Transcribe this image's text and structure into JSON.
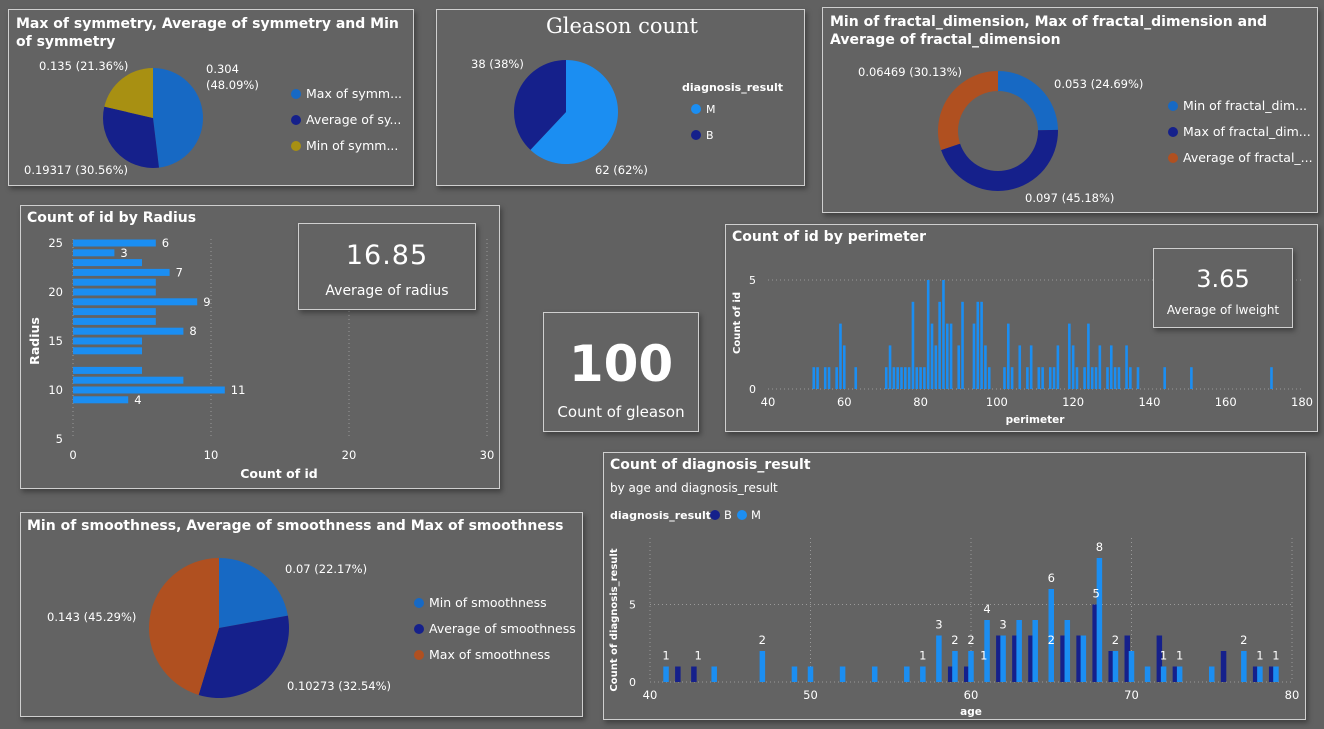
{
  "colors": {
    "blue": "#1B8EF2",
    "mid_blue": "#1769C4",
    "navy": "#15208B",
    "olive": "#A89012",
    "rust": "#B05020",
    "grid": "#9a9a9a"
  },
  "kpis": {
    "radius": {
      "value": "16.85",
      "label": "Average of radius"
    },
    "gleason": {
      "value": "100",
      "label": "Count of gleason"
    },
    "lweight": {
      "value": "3.65",
      "label": "Average of lweight"
    }
  },
  "chart_data": [
    {
      "id": "symmetry",
      "type": "pie",
      "title": "Max of symmetry, Average of symmetry and Min of symmetry",
      "slices": [
        {
          "name": "Max of symmetry",
          "legend": "Max of symm...",
          "value": 0.304,
          "label": "0.304 (48.09%)",
          "color": "#1769C4"
        },
        {
          "name": "Average of symmetry",
          "legend": "Average of sy...",
          "value": 0.19317,
          "label": "0.19317 (30.56%)",
          "color": "#15208B"
        },
        {
          "name": "Min of symmetry",
          "legend": "Min of symm...",
          "value": 0.135,
          "label": "0.135 (21.36%)",
          "color": "#A89012"
        }
      ]
    },
    {
      "id": "gleason",
      "type": "pie",
      "title": "Gleason count",
      "legend_title": "diagnosis_result",
      "slices": [
        {
          "name": "M",
          "legend": "M",
          "value": 62,
          "label": "62 (62%)",
          "color": "#1B8EF2"
        },
        {
          "name": "B",
          "legend": "B",
          "value": 38,
          "label": "38 (38%)",
          "color": "#15208B"
        }
      ]
    },
    {
      "id": "fractal",
      "type": "donut",
      "title": "Min of fractal_dimension, Max of fractal_dimension and Average of fractal_dimension",
      "slices": [
        {
          "name": "Min of fractal_dimension",
          "legend": "Min of fractal_dim...",
          "value": 0.053,
          "label": "0.053 (24.69%)",
          "color": "#1769C4"
        },
        {
          "name": "Max of fractal_dimension",
          "legend": "Max of fractal_dim...",
          "value": 0.097,
          "label": "0.097 (45.18%)",
          "color": "#15208B"
        },
        {
          "name": "Average of fractal_dimension",
          "legend": "Average of fractal_...",
          "value": 0.06469,
          "label": "0.06469 (30.13%)",
          "color": "#B05020"
        }
      ]
    },
    {
      "id": "radius",
      "type": "bar",
      "orientation": "horizontal",
      "title": "Count of id by Radius",
      "xlabel": "Count of id",
      "ylabel": "Radius",
      "xlim": [
        0,
        30
      ],
      "ylim": [
        5,
        25
      ],
      "xticks": [
        0,
        10,
        20,
        30
      ],
      "yticks": [
        5,
        10,
        15,
        20,
        25
      ],
      "categories": [
        25,
        24,
        23,
        22,
        21,
        20,
        19,
        18,
        17,
        16,
        15,
        14,
        12,
        11,
        10,
        9
      ],
      "values": [
        6,
        3,
        5,
        7,
        6,
        6,
        9,
        6,
        6,
        8,
        5,
        5,
        5,
        8,
        11,
        4
      ],
      "data_labels": {
        "25": "6",
        "24": "3",
        "22": "7",
        "19": "9",
        "16": "8",
        "10": "11",
        "9": "4"
      }
    },
    {
      "id": "perimeter",
      "type": "bar",
      "title": "Count of id by perimeter",
      "xlabel": "perimeter",
      "ylabel": "Count of id",
      "xlim": [
        40,
        180
      ],
      "ylim": [
        0,
        5
      ],
      "xticks": [
        40,
        60,
        80,
        100,
        120,
        140,
        160,
        180
      ],
      "yticks": [
        0,
        5
      ],
      "x": [
        52,
        53,
        55,
        56,
        58,
        59,
        60,
        63,
        71,
        72,
        73,
        74,
        75,
        76,
        77,
        78,
        79,
        80,
        81,
        82,
        83,
        84,
        85,
        86,
        87,
        88,
        90,
        91,
        94,
        95,
        96,
        97,
        98,
        102,
        103,
        104,
        106,
        108,
        109,
        111,
        112,
        114,
        115,
        116,
        119,
        120,
        121,
        123,
        124,
        125,
        126,
        127,
        129,
        130,
        131,
        132,
        134,
        135,
        137,
        144,
        151,
        172
      ],
      "values": [
        1,
        1,
        1,
        1,
        1,
        3,
        2,
        1,
        1,
        2,
        1,
        1,
        1,
        1,
        1,
        4,
        1,
        1,
        1,
        5,
        3,
        2,
        4,
        5,
        3,
        3,
        2,
        4,
        3,
        4,
        4,
        2,
        1,
        1,
        3,
        1,
        2,
        1,
        2,
        1,
        1,
        1,
        1,
        2,
        3,
        2,
        1,
        1,
        3,
        1,
        1,
        2,
        1,
        2,
        1,
        1,
        2,
        1,
        1,
        1,
        1,
        1
      ]
    },
    {
      "id": "smoothness",
      "type": "pie",
      "title": "Min of smoothness, Average of smoothness and Max of smoothness",
      "slices": [
        {
          "name": "Min of smoothness",
          "legend": "Min of smoothness",
          "value": 0.07,
          "label": "0.07 (22.17%)",
          "color": "#1769C4"
        },
        {
          "name": "Average of smoothness",
          "legend": "Average of smoothness",
          "value": 0.10273,
          "label": "0.10273 (32.54%)",
          "color": "#15208B"
        },
        {
          "name": "Max of smoothness",
          "legend": "Max of smoothness",
          "value": 0.143,
          "label": "0.143 (45.29%)",
          "color": "#B05020"
        }
      ]
    },
    {
      "id": "diagnosis_age",
      "type": "bar",
      "title": "Count of diagnosis_result",
      "subtitle": "by age and diagnosis_result",
      "legend_title": "diagnosis_result",
      "xlabel": "age",
      "ylabel": "Count of diagnosis_result",
      "xlim": [
        40,
        80
      ],
      "ylim": [
        0,
        8
      ],
      "xticks": [
        40,
        50,
        60,
        70,
        80
      ],
      "yticks": [
        0,
        5
      ],
      "series": [
        {
          "name": "B",
          "color": "#15208B",
          "points": [
            [
              42,
              1
            ],
            [
              43,
              1
            ],
            [
              59,
              1
            ],
            [
              60,
              1
            ],
            [
              62,
              3
            ],
            [
              63,
              3
            ],
            [
              64,
              3
            ],
            [
              66,
              3
            ],
            [
              67,
              3
            ],
            [
              68,
              5
            ],
            [
              69,
              2
            ],
            [
              70,
              3
            ],
            [
              72,
              3
            ],
            [
              73,
              1
            ],
            [
              76,
              2
            ],
            [
              78,
              1
            ],
            [
              79,
              1
            ]
          ]
        },
        {
          "name": "M",
          "color": "#1B8EF2",
          "points": [
            [
              41,
              1
            ],
            [
              44,
              1
            ],
            [
              47,
              2
            ],
            [
              49,
              1
            ],
            [
              50,
              1
            ],
            [
              52,
              1
            ],
            [
              54,
              1
            ],
            [
              56,
              1
            ],
            [
              57,
              1
            ],
            [
              58,
              3
            ],
            [
              59,
              2
            ],
            [
              60,
              2
            ],
            [
              61,
              4
            ],
            [
              62,
              3
            ],
            [
              63,
              4
            ],
            [
              64,
              4
            ],
            [
              65,
              6
            ],
            [
              66,
              4
            ],
            [
              67,
              3
            ],
            [
              68,
              8
            ],
            [
              69,
              2
            ],
            [
              70,
              2
            ],
            [
              71,
              1
            ],
            [
              72,
              1
            ],
            [
              73,
              1
            ],
            [
              75,
              1
            ],
            [
              77,
              2
            ],
            [
              78,
              1
            ],
            [
              79,
              1
            ]
          ]
        }
      ],
      "data_labels": [
        {
          "x": 41,
          "text": "1"
        },
        {
          "x": 43,
          "text": "1"
        },
        {
          "x": 47,
          "text": "2"
        },
        {
          "x": 57,
          "text": "1"
        },
        {
          "x": 58,
          "text": "3"
        },
        {
          "x": 59,
          "text": "2"
        },
        {
          "x": 60,
          "text": "2"
        },
        {
          "x": 60.8,
          "text": "1"
        },
        {
          "x": 61,
          "text": "4"
        },
        {
          "x": 62,
          "text": "3"
        },
        {
          "x": 65,
          "text": "2"
        },
        {
          "x": 65,
          "text": "6"
        },
        {
          "x": 67.8,
          "text": "5"
        },
        {
          "x": 68,
          "text": "8"
        },
        {
          "x": 69,
          "text": "2"
        },
        {
          "x": 72,
          "text": "1"
        },
        {
          "x": 73,
          "text": "1"
        },
        {
          "x": 77,
          "text": "2"
        },
        {
          "x": 78,
          "text": "1"
        },
        {
          "x": 79,
          "text": "1"
        }
      ]
    }
  ]
}
